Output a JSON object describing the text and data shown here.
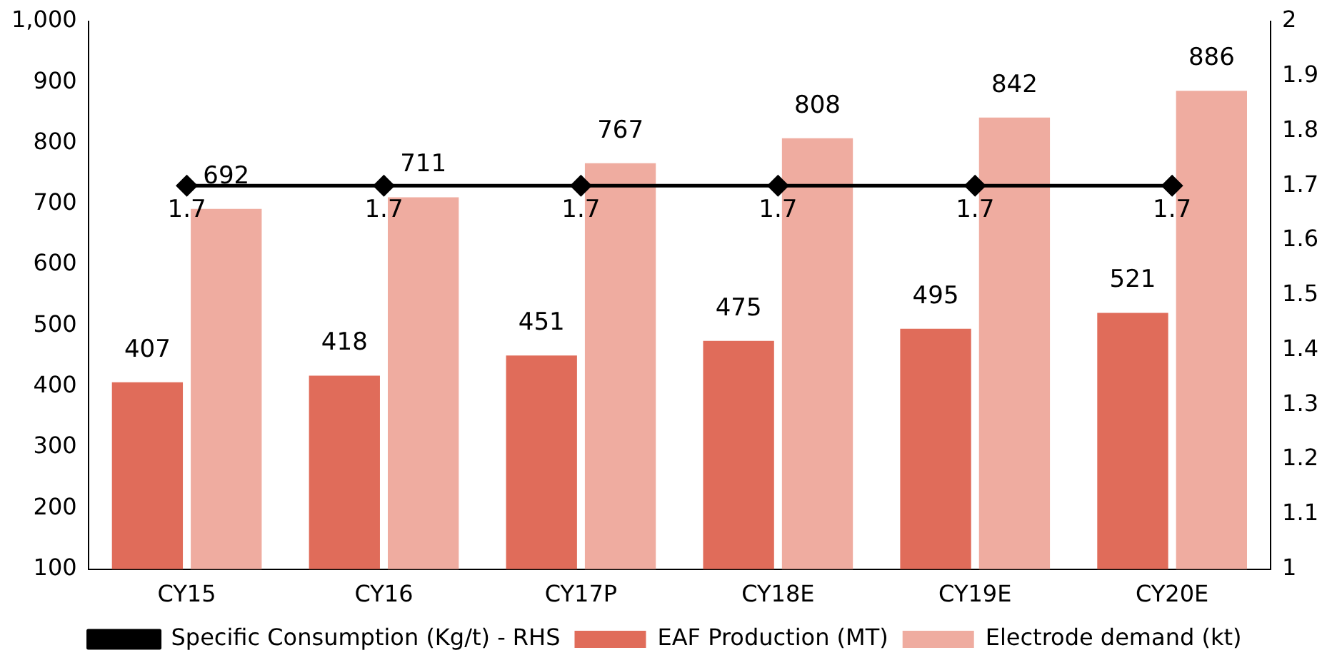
{
  "chart_data": {
    "type": "bar",
    "categories": [
      "CY15",
      "CY16",
      "CY17P",
      "CY18E",
      "CY19E",
      "CY20E"
    ],
    "series": [
      {
        "name": "EAF Production (MT)",
        "color": "#e06c5a",
        "values": [
          407,
          418,
          451,
          475,
          495,
          521
        ]
      },
      {
        "name": "Electrode demand (kt)",
        "color": "#efaca0",
        "values": [
          692,
          711,
          767,
          808,
          842,
          886
        ]
      },
      {
        "name": "Specific Consumption (Kg/t) - RHS",
        "type": "line",
        "axis": "y2",
        "color": "#000000",
        "values": [
          1.7,
          1.7,
          1.7,
          1.7,
          1.7,
          1.7
        ]
      }
    ],
    "ylim": [
      100,
      1000
    ],
    "yticks": [
      100,
      200,
      300,
      400,
      500,
      600,
      700,
      800,
      900,
      {
        "value": 1000,
        "label": "1,000"
      }
    ],
    "y2lim": [
      1,
      2
    ],
    "y2ticks": [
      1,
      1.1,
      1.2,
      1.3,
      1.4,
      1.5,
      1.6,
      1.7,
      1.8,
      1.9,
      2
    ],
    "data_labels": true,
    "grid": false,
    "legend": "bottom",
    "marker": "diamond"
  }
}
